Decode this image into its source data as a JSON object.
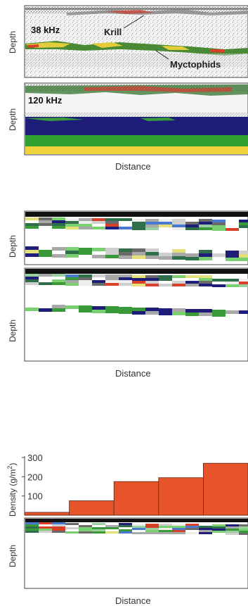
{
  "panel_a": {
    "top_label": "38 kHz",
    "bottom_label": "120 kHz",
    "annotation_krill": "Krill",
    "annotation_myctophids": "Myctophids",
    "ylabel": "Depth",
    "xlabel": "Distance"
  },
  "panel_b": {
    "ylabel": "Depth",
    "xlabel": "Distance"
  },
  "panel_c": {
    "ylabel_density": "Density (g/m",
    "ylabel_density_sup": "2",
    "ylabel_density_close": ")",
    "ylabel_depth": "Depth",
    "xlabel": "Distance"
  },
  "chart_data": {
    "type": "bar",
    "x": [
      1,
      2,
      3,
      4,
      5
    ],
    "values": [
      15,
      75,
      175,
      195,
      270
    ],
    "yticks": [
      100,
      200,
      300
    ],
    "ylim": [
      0,
      300
    ],
    "ylabel": "Density (g/m2)",
    "xlabel": "Distance",
    "bar_color": "#e8542a"
  },
  "colors": {
    "echo_green": "#2e9a36",
    "echo_blue": "#1e1e7a",
    "echo_yellow": "#f2d23a",
    "echo_red": "#d8402a",
    "bar_orange": "#e8542a"
  }
}
